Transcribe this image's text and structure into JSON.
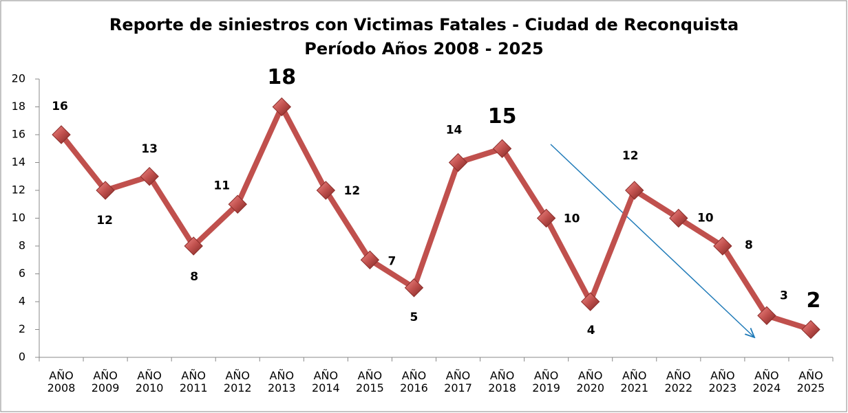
{
  "chart_data": {
    "type": "line",
    "title": "Reporte de siniestros con Victimas Fatales - Ciudad de Reconquista",
    "subtitle": "Período Años 2008 - 2025",
    "categories": [
      "AÑO 2008",
      "AÑO 2009",
      "AÑO 2010",
      "AÑO 2011",
      "AÑO 2012",
      "AÑO 2013",
      "AÑO 2014",
      "AÑO 2015",
      "AÑO 2016",
      "AÑO 2017",
      "AÑO 2018",
      "AÑO 2019",
      "AÑO 2020",
      "AÑO 2021",
      "AÑO 2022",
      "AÑO 2023",
      "AÑO 2024",
      "AÑO 2025"
    ],
    "values": [
      16,
      12,
      13,
      8,
      11,
      18,
      12,
      7,
      5,
      14,
      15,
      10,
      4,
      12,
      10,
      8,
      3,
      2
    ],
    "color": "#c0504d",
    "ylim": [
      0,
      20
    ],
    "yticks": [
      0,
      2,
      4,
      6,
      8,
      10,
      12,
      14,
      16,
      18,
      20
    ],
    "grid": false
  }
}
